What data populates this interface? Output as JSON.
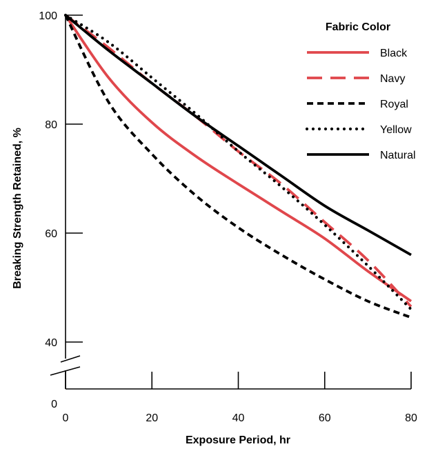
{
  "chart_data": {
    "type": "line",
    "xlabel": "Exposure Period, hr",
    "ylabel": "Breaking Strength Retained, %",
    "xlim": [
      0,
      80
    ],
    "ylim": [
      40,
      100
    ],
    "x_ticks": [
      "0",
      "20",
      "40",
      "60",
      "80"
    ],
    "y_ticks": [
      "40",
      "60",
      "80",
      "100"
    ],
    "y_zero_label": "0",
    "axis_break": true,
    "grid": false,
    "legend": {
      "title": "Fabric Color",
      "position": "top-right"
    },
    "series": [
      {
        "name": "Black",
        "color": "#e0474c",
        "dash": "solid",
        "x": [
          0,
          10,
          20,
          30,
          40,
          50,
          60,
          70,
          80
        ],
        "y": [
          100,
          88.5,
          80.3,
          74.2,
          69.0,
          64.0,
          59.0,
          53.0,
          47.5
        ]
      },
      {
        "name": "Navy",
        "color": "#e0474c",
        "dash": "long-dash",
        "x": [
          0,
          10,
          20,
          30,
          40,
          50,
          60,
          70,
          80
        ],
        "y": [
          100,
          94.0,
          87.5,
          81.5,
          75.0,
          69.0,
          62.0,
          55.0,
          46.5
        ]
      },
      {
        "name": "Royal",
        "color": "#000000",
        "dash": "short-dash",
        "x": [
          0,
          10,
          20,
          30,
          40,
          50,
          60,
          70,
          80
        ],
        "y": [
          100,
          84.0,
          74.5,
          67.0,
          61.0,
          56.0,
          51.5,
          47.5,
          44.5
        ]
      },
      {
        "name": "Yellow",
        "color": "#000000",
        "dash": "dotted",
        "x": [
          0,
          10,
          20,
          30,
          40,
          50,
          60,
          70,
          80
        ],
        "y": [
          100,
          95.0,
          88.5,
          82.0,
          75.0,
          68.5,
          61.5,
          54.0,
          46.0
        ]
      },
      {
        "name": "Natural",
        "color": "#000000",
        "dash": "solid",
        "x": [
          0,
          10,
          20,
          30,
          40,
          50,
          60,
          70,
          80
        ],
        "y": [
          100,
          93.5,
          87.5,
          81.5,
          76.0,
          70.5,
          65.0,
          60.5,
          56.0
        ]
      }
    ]
  }
}
